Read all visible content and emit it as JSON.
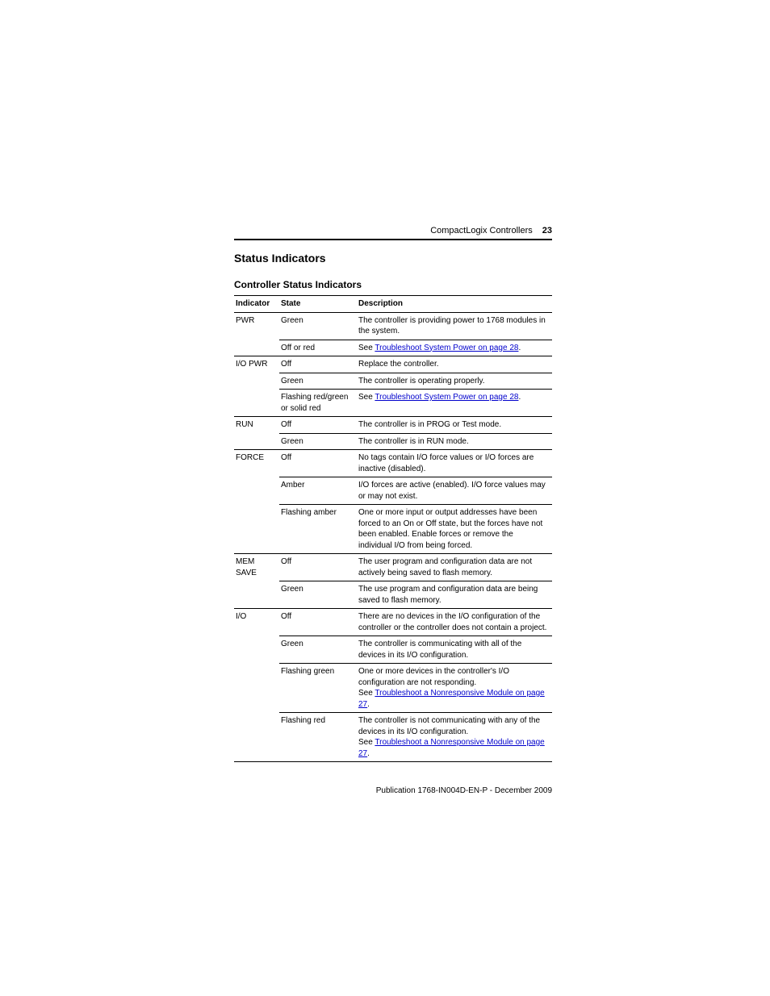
{
  "header": {
    "title": "CompactLogix Controllers",
    "page_number": "23"
  },
  "section_title": "Status Indicators",
  "subsection_title": "Controller Status Indicators",
  "table": {
    "columns": [
      "Indicator",
      "State",
      "Description"
    ],
    "rows": [
      {
        "indicator": "PWR",
        "indicator_rowspan": 2,
        "state": "Green",
        "desc_plain": "The controller is providing power to 1768 modules in the system."
      },
      {
        "state": "Off or red",
        "desc_prefix": "See ",
        "desc_link": "Troubleshoot System Power on page 28",
        "desc_suffix": "."
      },
      {
        "indicator": "I/O PWR",
        "indicator_rowspan": 3,
        "state": "Off",
        "desc_plain": "Replace the controller."
      },
      {
        "state": "Green",
        "desc_plain": "The controller is operating properly."
      },
      {
        "state": "Flashing red/green or solid red",
        "desc_prefix": "See ",
        "desc_link": "Troubleshoot System Power on page 28",
        "desc_suffix": "."
      },
      {
        "indicator": "RUN",
        "indicator_rowspan": 2,
        "state": "Off",
        "desc_plain": "The controller is in PROG or Test mode."
      },
      {
        "state": "Green",
        "desc_plain": "The controller is in RUN mode."
      },
      {
        "indicator": "FORCE",
        "indicator_rowspan": 3,
        "state": "Off",
        "desc_plain": "No tags contain I/O force values or I/O forces are inactive (disabled)."
      },
      {
        "state": "Amber",
        "desc_plain": "I/O forces are active (enabled). I/O force values may or may not exist."
      },
      {
        "state": "Flashing amber",
        "desc_plain": "One or more input or output addresses have been forced to an On or Off state, but the forces have not been enabled. Enable forces or remove the individual I/O from being forced."
      },
      {
        "indicator": "MEM SAVE",
        "indicator_rowspan": 2,
        "state": "Off",
        "desc_plain": "The user program and configuration data are not actively being saved to flash memory."
      },
      {
        "state": "Green",
        "desc_plain": "The use program and configuration data are being saved to flash memory."
      },
      {
        "indicator": "I/O",
        "indicator_rowspan": 4,
        "state": "Off",
        "desc_plain": "There are no devices in the I/O configuration of the controller or the controller does not contain a project."
      },
      {
        "state": "Green",
        "desc_plain": "The controller is communicating with all of the devices in its I/O configuration."
      },
      {
        "state": "Flashing green",
        "desc_prefix": "One or more devices in the controller's I/O configuration are not responding.\nSee ",
        "desc_link": "Troubleshoot a Nonresponsive Module on page 27",
        "desc_suffix": "."
      },
      {
        "state": "Flashing red",
        "last": true,
        "desc_prefix": "The controller is not communicating with any of the devices in its I/O configuration.\nSee ",
        "desc_link": "Troubleshoot a Nonresponsive Module on page 27",
        "desc_suffix": "."
      }
    ]
  },
  "footer": {
    "prefix": "Publication ",
    "code": "1768-IN004D-EN-P - December 2009"
  },
  "colors": {
    "text": "#000000",
    "link": "#0000cc",
    "background": "#ffffff",
    "rule": "#000000"
  }
}
